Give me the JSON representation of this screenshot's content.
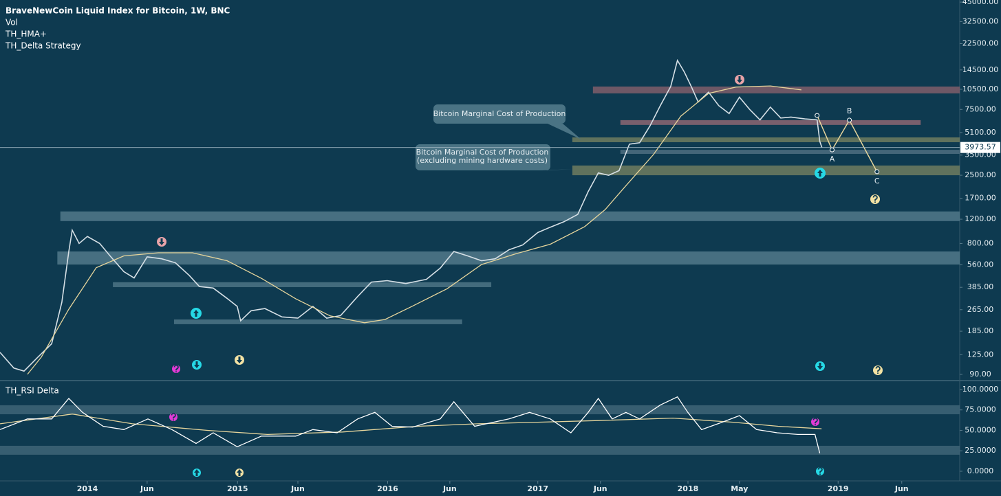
{
  "chart_data": [
    {
      "type": "line",
      "title": "BraveNewCoin Liquid Index for Bitcoin, 1W, BNC",
      "indicators": [
        "Vol",
        "TH_HMA+",
        "TH_Delta Strategy"
      ],
      "log_scale": true,
      "xlim": [
        2013.418,
        2019.81
      ],
      "ylim": [
        83,
        46600
      ],
      "yticks": [
        {
          "value": 45000,
          "label": "45000.00"
        },
        {
          "value": 32500,
          "label": "32500.00"
        },
        {
          "value": 22500,
          "label": "22500.00"
        },
        {
          "value": 14500,
          "label": "14500.00"
        },
        {
          "value": 10500,
          "label": "10500.00"
        },
        {
          "value": 7500,
          "label": "7500.00"
        },
        {
          "value": 5100,
          "label": "5100.00"
        },
        {
          "value": 3500,
          "label": "3500.00"
        },
        {
          "value": 2500,
          "label": "2500.00"
        },
        {
          "value": 1700,
          "label": "1700.00"
        },
        {
          "value": 1200,
          "label": "1200.00"
        },
        {
          "value": 800,
          "label": "800.00"
        },
        {
          "value": 560,
          "label": "560.00"
        },
        {
          "value": 385,
          "label": "385.00"
        },
        {
          "value": 265,
          "label": "265.00"
        },
        {
          "value": 185,
          "label": "185.00"
        },
        {
          "value": 125,
          "label": "125.00"
        },
        {
          "value": 90,
          "label": "90.00"
        }
      ],
      "last_price": 3973.57,
      "bands": [
        {
          "low": 9800,
          "high": 10990,
          "x0": 2017.367,
          "x1": 2019.81,
          "color": "#7f5e6a"
        },
        {
          "low": 5790,
          "high": 6270,
          "x0": 2017.55,
          "x1": 2019.55,
          "color": "#8c6672"
        },
        {
          "low": 4340,
          "high": 4700,
          "x0": 2017.23,
          "x1": 2019.81,
          "color": "#6f7c5f"
        },
        {
          "low": 3570,
          "high": 3820,
          "x0": 2017.55,
          "x1": 2019.81,
          "color": "#4d6f80"
        },
        {
          "low": 2500,
          "high": 2940,
          "x0": 2017.23,
          "x1": 2019.81,
          "color": "#6f7c5f"
        },
        {
          "low": 1163,
          "high": 1366,
          "x0": 2013.82,
          "x1": 2019.81,
          "color": "#51798a"
        },
        {
          "low": 563,
          "high": 700,
          "x0": 2013.8,
          "x1": 2019.81,
          "color": "#51798a"
        },
        {
          "low": 386,
          "high": 419,
          "x0": 2014.17,
          "x1": 2016.69,
          "color": "#4c7485"
        },
        {
          "low": 208,
          "high": 225,
          "x0": 2014.577,
          "x1": 2016.496,
          "color": "#4c7485"
        }
      ],
      "annotations": [
        {
          "lines": [
            "Bitcoin Marginal Cost of Production"
          ]
        },
        {
          "lines": [
            "Bitcoin Marginal Cost of Production",
            "(excluding mining hardware costs)"
          ]
        }
      ],
      "series": [
        {
          "color": "#d6e0e6",
          "x": [
            2013.418,
            2013.51,
            2013.578,
            2013.67,
            2013.762,
            2013.83,
            2013.876,
            2013.899,
            2013.945,
            2014.0,
            2014.082,
            2014.151,
            2014.243,
            2014.311,
            2014.398,
            2014.495,
            2014.586,
            2014.678,
            2014.746,
            2014.838,
            2014.93,
            2014.998,
            2015.021,
            2015.09,
            2015.182,
            2015.296,
            2015.402,
            2015.502,
            2015.594,
            2015.686,
            2015.8,
            2015.892,
            2015.997,
            2016.121,
            2016.258,
            2016.35,
            2016.441,
            2016.533,
            2016.625,
            2016.716,
            2016.808,
            2016.899,
            2017.0,
            2017.083,
            2017.174,
            2017.266,
            2017.335,
            2017.403,
            2017.472,
            2017.541,
            2017.61,
            2017.678,
            2017.747,
            2017.816,
            2017.885,
            2017.93,
            2017.976,
            2018.022,
            2018.068,
            2018.137,
            2018.205,
            2018.274,
            2018.343,
            2018.411,
            2018.48,
            2018.549,
            2018.618,
            2018.686,
            2018.778,
            2018.86,
            2018.878,
            2018.892
          ],
          "values": [
            130,
            100,
            95,
            120,
            150,
            300,
            700,
            1000,
            800,
            900,
            800,
            650,
            500,
            450,
            640,
            620,
            580,
            470,
            390,
            380,
            320,
            280,
            220,
            260,
            270,
            235,
            230,
            280,
            230,
            240,
            330,
            420,
            430,
            410,
            440,
            530,
            700,
            650,
            600,
            620,
            720,
            780,
            960,
            1050,
            1150,
            1300,
            1900,
            2600,
            2500,
            2700,
            4200,
            4300,
            5700,
            8000,
            11000,
            17000,
            14000,
            11000,
            8500,
            10000,
            8000,
            7000,
            9200,
            7500,
            6300,
            7800,
            6500,
            6600,
            6400,
            6300,
            4400,
            3973.57
          ]
        },
        {
          "color": "#e6d59c",
          "x": [
            2013.601,
            2013.693,
            2013.876,
            2014.059,
            2014.243,
            2014.472,
            2014.7,
            2014.93,
            2015.159,
            2015.388,
            2015.617,
            2015.846,
            2015.983,
            2016.167,
            2016.396,
            2016.625,
            2016.854,
            2017.083,
            2017.312,
            2017.449,
            2017.587,
            2017.77,
            2017.953,
            2018.137,
            2018.32,
            2018.549,
            2018.755
          ],
          "values": [
            90,
            120,
            267,
            534,
            650,
            685,
            685,
            600,
            447,
            318,
            239,
            213,
            225,
            282,
            376,
            563,
            674,
            790,
            1060,
            1410,
            2100,
            3530,
            6710,
            9800,
            10900,
            11100,
            10400
          ]
        }
      ],
      "projection": {
        "color": "#e6d59c",
        "x": [
          2018.86,
          2018.96,
          2019.075,
          2019.259
        ],
        "values": [
          6780,
          3820,
          6270,
          2652
        ],
        "labels": [
          null,
          "A",
          "B",
          "C"
        ]
      }
    },
    {
      "type": "line",
      "title": "TH_RSI Delta",
      "log_scale": false,
      "xlim": [
        2013.418,
        2019.81
      ],
      "ylim": [
        -11.8,
        109.2
      ],
      "yticks": [
        {
          "value": 100,
          "label": "100.0000"
        },
        {
          "value": 75,
          "label": "75.0000"
        },
        {
          "value": 50,
          "label": "50.0000"
        },
        {
          "value": 25,
          "label": "25.0000"
        },
        {
          "value": 0,
          "label": "0.0000"
        }
      ],
      "xticks": [
        2014,
        {
          "value": 2014.398,
          "label": "Jun"
        },
        2015,
        {
          "value": 2015.402,
          "label": "Jun"
        },
        2016,
        {
          "value": 2016.414,
          "label": "Jun"
        },
        2017,
        {
          "value": 2017.417,
          "label": "Jun"
        },
        2018,
        {
          "value": 2018.343,
          "label": "May"
        },
        2019,
        {
          "value": 2019.424,
          "label": "Jun"
        }
      ],
      "bands": [
        {
          "low": 69.7,
          "high": 80.7,
          "x0": 2013.418,
          "x1": 2019.81,
          "color": "#3e6577"
        },
        {
          "low": 20.2,
          "high": 31.1,
          "x0": 2013.418,
          "x1": 2019.81,
          "color": "#3e6577"
        }
      ],
      "series": [
        {
          "color": "#e6d59c",
          "x": [
            2013.418,
            2013.9,
            2014.3,
            2014.8,
            2015.2,
            2015.7,
            2016.2,
            2016.6,
            2017.0,
            2017.4,
            2017.9,
            2018.3,
            2018.6,
            2018.89
          ],
          "values": [
            58,
            70,
            58,
            50,
            45,
            48,
            55,
            58,
            60,
            62,
            65,
            60,
            55,
            52
          ]
        },
        {
          "color": "#ffffff",
          "x": [
            2013.418,
            2013.601,
            2013.762,
            2013.876,
            2013.968,
            2014.105,
            2014.243,
            2014.403,
            2014.563,
            2014.724,
            2014.838,
            2014.998,
            2015.159,
            2015.388,
            2015.502,
            2015.663,
            2015.8,
            2015.915,
            2016.029,
            2016.167,
            2016.35,
            2016.441,
            2016.579,
            2016.808,
            2016.945,
            2017.083,
            2017.22,
            2017.335,
            2017.403,
            2017.495,
            2017.587,
            2017.678,
            2017.816,
            2017.93,
            2017.999,
            2018.091,
            2018.228,
            2018.343,
            2018.457,
            2018.595,
            2018.732,
            2018.846,
            2018.878
          ],
          "values": [
            51,
            64,
            64,
            89,
            72,
            55,
            51,
            64,
            51,
            34,
            47,
            30,
            43,
            43,
            51,
            47,
            64,
            72,
            55,
            54,
            64,
            85,
            55,
            64,
            72,
            64,
            47,
            72,
            89,
            64,
            72,
            64,
            81,
            91,
            72,
            51,
            60,
            68,
            51,
            47,
            45,
            45,
            22
          ]
        }
      ]
    }
  ]
}
